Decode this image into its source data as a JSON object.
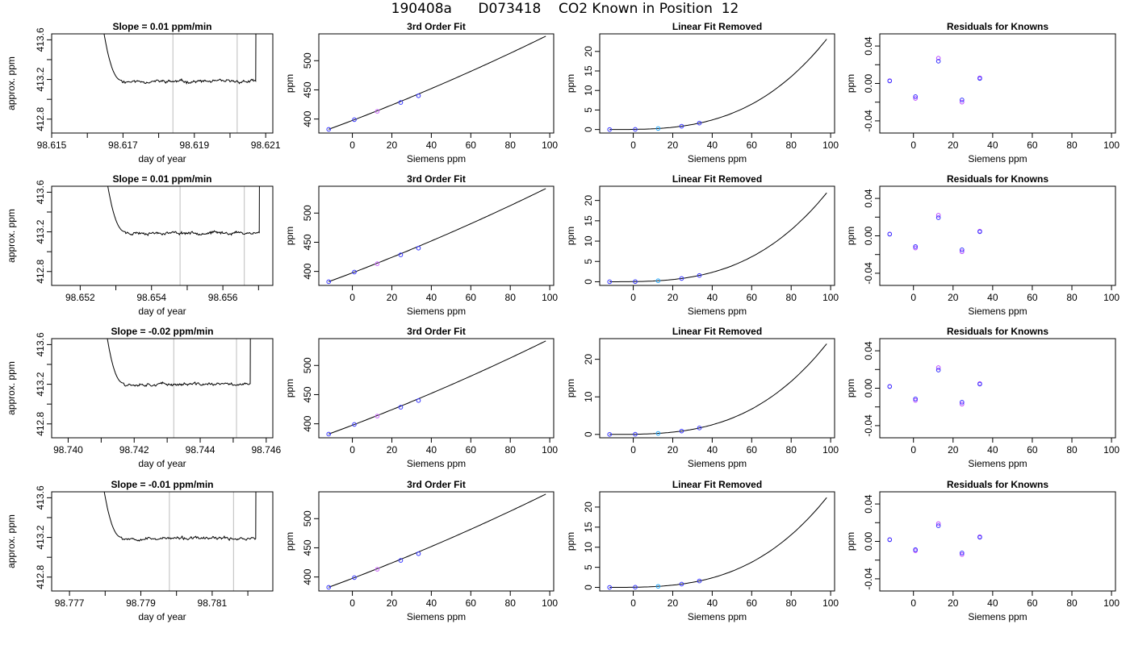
{
  "page_title": "190408a      D073418    CO2 Known in Position  12",
  "colors": {
    "line": "#000000",
    "window_marker": "#c8c8c8",
    "point_primary": "#3333ff",
    "point_secondary": "#bb44ff",
    "point_cyan": "#22aaff",
    "point_pink": "#cc66ff"
  },
  "chart_data": [
    {
      "type": "line",
      "row": 1,
      "title": "Slope =  0.01  ppm/min",
      "xlabel": "day of year",
      "ylabel": "approx. ppm",
      "xlim": [
        98.615,
        98.6212
      ],
      "ylim": [
        412.66,
        413.66
      ],
      "x_ticks": [
        98.615,
        98.616,
        98.617,
        98.618,
        98.619,
        98.62,
        98.621
      ],
      "x_tick_labels": [
        "98.615",
        "",
        "98.617",
        "",
        "98.619",
        "",
        "98.621"
      ],
      "y_ticks": [
        412.8,
        413.0,
        413.2,
        413.4,
        413.6
      ],
      "y_tick_labels": [
        "412.8",
        "",
        "413.2",
        "",
        "413.6"
      ],
      "window": [
        98.6184,
        98.6202
      ],
      "t_start": 98.6161,
      "t_end": 98.6209,
      "baseline": 413.18,
      "seed": 11
    },
    {
      "type": "line",
      "row": 1,
      "title": "3rd Order Fit",
      "xlabel": "Siemens ppm",
      "ylabel": "ppm",
      "xlim": [
        -17,
        102
      ],
      "ylim": [
        376,
        546
      ],
      "x_ticks": [
        0,
        20,
        40,
        60,
        80,
        100
      ],
      "x_tick_labels": [
        "0",
        "20",
        "40",
        "60",
        "80",
        "100"
      ],
      "y_ticks": [
        400,
        450,
        500
      ],
      "y_tick_labels": [
        "400",
        "450",
        "500"
      ],
      "points_x": [
        -12,
        1,
        12.6,
        24.5,
        33.5
      ],
      "points_y": [
        382.3,
        398.9,
        413.2,
        428.4,
        439.9
      ],
      "curve_x_range": [
        -12,
        98
      ],
      "curve_end_y": 542
    },
    {
      "type": "line",
      "row": 1,
      "title": "Linear Fit Removed",
      "xlabel": "Siemens ppm",
      "ylabel": "ppm",
      "xlim": [
        -17,
        102
      ],
      "ylim": [
        -0.9,
        24.5
      ],
      "x_ticks": [
        0,
        20,
        40,
        60,
        80,
        100
      ],
      "x_tick_labels": [
        "0",
        "20",
        "40",
        "60",
        "80",
        "100"
      ],
      "y_ticks": [
        0,
        5,
        10,
        15,
        20
      ],
      "y_tick_labels": [
        "0",
        "5",
        "10",
        "15",
        "20"
      ],
      "points_x": [
        -12,
        1,
        12.6,
        24.5,
        33.5
      ],
      "curve_x_range": [
        -12,
        98
      ],
      "curve_end_y": 23.6
    },
    {
      "type": "scatter",
      "row": 1,
      "title": "Residuals for Knowns",
      "xlabel": "Siemens ppm",
      "ylabel": "ppm",
      "xlim": [
        -17,
        102
      ],
      "ylim": [
        -0.053,
        0.053
      ],
      "x_ticks": [
        0,
        20,
        40,
        60,
        80,
        100
      ],
      "x_tick_labels": [
        "0",
        "20",
        "40",
        "60",
        "80",
        "100"
      ],
      "y_ticks": [
        -0.04,
        -0.02,
        0,
        0.02,
        0.04
      ],
      "y_tick_labels": [
        "-0.04",
        "",
        "0.00",
        "",
        "0.04"
      ],
      "points_x": [
        -12,
        1,
        12.6,
        24.5,
        33.5
      ],
      "points_y": [
        0.003,
        -0.016,
        0.027,
        -0.02,
        0.006
      ]
    },
    {
      "type": "line",
      "row": 2,
      "title": "Slope =  0.01  ppm/min",
      "xlabel": "day of year",
      "ylabel": "approx. ppm",
      "xlim": [
        98.6512,
        98.6574
      ],
      "ylim": [
        412.66,
        413.66
      ],
      "x_ticks": [
        98.652,
        98.653,
        98.654,
        98.655,
        98.656,
        98.657
      ],
      "x_tick_labels": [
        "98.652",
        "",
        "98.654",
        "",
        "98.656",
        ""
      ],
      "y_ticks": [
        412.8,
        413.0,
        413.2,
        413.4,
        413.6
      ],
      "y_tick_labels": [
        "412.8",
        "",
        "413.2",
        "",
        "413.6"
      ],
      "window": [
        98.6548,
        98.6566
      ],
      "t_start": 98.6524,
      "t_end": 98.6572,
      "baseline": 413.19,
      "seed": 23
    },
    {
      "type": "line",
      "row": 2,
      "title": "3rd Order Fit",
      "xlabel": "Siemens ppm",
      "ylabel": "ppm",
      "xlim": [
        -17,
        102
      ],
      "ylim": [
        376,
        546
      ],
      "x_ticks": [
        0,
        20,
        40,
        60,
        80,
        100
      ],
      "x_tick_labels": [
        "0",
        "20",
        "40",
        "60",
        "80",
        "100"
      ],
      "y_ticks": [
        400,
        450,
        500
      ],
      "y_tick_labels": [
        "400",
        "450",
        "500"
      ],
      "points_x": [
        -12,
        1,
        12.6,
        24.5,
        33.5
      ],
      "points_y": [
        382.3,
        398.9,
        413.2,
        428.4,
        439.9
      ],
      "curve_x_range": [
        -12,
        98
      ],
      "curve_end_y": 542
    },
    {
      "type": "line",
      "row": 2,
      "title": "Linear Fit Removed",
      "xlabel": "Siemens ppm",
      "ylabel": "ppm",
      "xlim": [
        -17,
        102
      ],
      "ylim": [
        -0.9,
        23.5
      ],
      "x_ticks": [
        0,
        20,
        40,
        60,
        80,
        100
      ],
      "x_tick_labels": [
        "0",
        "20",
        "40",
        "60",
        "80",
        "100"
      ],
      "y_ticks": [
        0,
        5,
        10,
        15,
        20
      ],
      "y_tick_labels": [
        "0",
        "5",
        "10",
        "15",
        "20"
      ],
      "points_x": [
        -12,
        1,
        12.6,
        24.5,
        33.5
      ],
      "curve_x_range": [
        -12,
        98
      ],
      "curve_end_y": 22.3
    },
    {
      "type": "scatter",
      "row": 2,
      "title": "Residuals for Knowns",
      "xlabel": "Siemens ppm",
      "ylabel": "ppm",
      "xlim": [
        -17,
        102
      ],
      "ylim": [
        -0.053,
        0.053
      ],
      "x_ticks": [
        0,
        20,
        40,
        60,
        80,
        100
      ],
      "x_tick_labels": [
        "0",
        "20",
        "40",
        "60",
        "80",
        "100"
      ],
      "y_ticks": [
        -0.04,
        -0.02,
        0,
        0.02,
        0.04
      ],
      "y_tick_labels": [
        "-0.04",
        "",
        "0.00",
        "",
        "0.04"
      ],
      "points_x": [
        -12,
        1,
        12.6,
        24.5,
        33.5
      ],
      "points_y": [
        0.002,
        -0.013,
        0.022,
        -0.017,
        0.005
      ]
    },
    {
      "type": "line",
      "row": 3,
      "title": "Slope =  -0.02  ppm/min",
      "xlabel": "day of year",
      "ylabel": "approx. ppm",
      "xlim": [
        98.7395,
        98.7462
      ],
      "ylim": [
        412.66,
        413.66
      ],
      "x_ticks": [
        98.74,
        98.741,
        98.742,
        98.743,
        98.744,
        98.745,
        98.746
      ],
      "x_tick_labels": [
        "98.740",
        "",
        "98.742",
        "",
        "98.744",
        "",
        "98.746"
      ],
      "y_ticks": [
        412.8,
        413.0,
        413.2,
        413.4,
        413.6
      ],
      "y_tick_labels": [
        "412.8",
        "",
        "413.2",
        "",
        "413.6"
      ],
      "window": [
        98.7432,
        98.7451
      ],
      "t_start": 98.7408,
      "t_end": 98.7457,
      "baseline": 413.2,
      "seed": 37
    },
    {
      "type": "line",
      "row": 3,
      "title": "3rd Order Fit",
      "xlabel": "Siemens ppm",
      "ylabel": "ppm",
      "xlim": [
        -17,
        102
      ],
      "ylim": [
        376,
        546
      ],
      "x_ticks": [
        0,
        20,
        40,
        60,
        80,
        100
      ],
      "x_tick_labels": [
        "0",
        "20",
        "40",
        "60",
        "80",
        "100"
      ],
      "y_ticks": [
        400,
        450,
        500
      ],
      "y_tick_labels": [
        "400",
        "450",
        "500"
      ],
      "points_x": [
        -12,
        1,
        12.6,
        24.5,
        33.5
      ],
      "points_y": [
        382.3,
        398.9,
        413.2,
        428.4,
        439.9
      ],
      "curve_x_range": [
        -12,
        98
      ],
      "curve_end_y": 542
    },
    {
      "type": "line",
      "row": 3,
      "title": "Linear Fit Removed",
      "xlabel": "Siemens ppm",
      "ylabel": "ppm",
      "xlim": [
        -17,
        102
      ],
      "ylim": [
        -0.9,
        25.5
      ],
      "x_ticks": [
        0,
        5,
        10,
        15,
        20
      ],
      "x_tick_labels": [
        "0",
        "20",
        "40",
        "60",
        "80",
        "100"
      ],
      "y_ticks": [
        0,
        10,
        20
      ],
      "y_tick_labels": [
        "0",
        "10",
        "20"
      ],
      "points_x": [
        -12,
        1,
        12.6,
        24.5,
        33.5
      ],
      "curve_x_range": [
        -12,
        98
      ],
      "curve_end_y": 24.6
    },
    {
      "type": "scatter",
      "row": 3,
      "title": "Residuals for Knowns",
      "xlabel": "Siemens ppm",
      "ylabel": "ppm",
      "xlim": [
        -17,
        102
      ],
      "ylim": [
        -0.053,
        0.053
      ],
      "x_ticks": [
        0,
        20,
        40,
        60,
        80,
        100
      ],
      "x_tick_labels": [
        "0",
        "20",
        "40",
        "60",
        "80",
        "100"
      ],
      "y_ticks": [
        -0.04,
        -0.02,
        0,
        0.02,
        0.04
      ],
      "y_tick_labels": [
        "-0.04",
        "",
        "0.00",
        "",
        "0.04"
      ],
      "points_x": [
        -12,
        1,
        12.6,
        24.5,
        33.5
      ],
      "points_y": [
        0.002,
        -0.013,
        0.022,
        -0.017,
        0.005
      ]
    },
    {
      "type": "line",
      "row": 4,
      "title": "Slope =  -0.01  ppm/min",
      "xlabel": "day of year",
      "ylabel": "approx. ppm",
      "xlim": [
        98.7765,
        98.7827
      ],
      "ylim": [
        412.66,
        413.66
      ],
      "x_ticks": [
        98.777,
        98.778,
        98.779,
        98.78,
        98.781,
        98.782
      ],
      "x_tick_labels": [
        "98.777",
        "",
        "98.779",
        "",
        "98.781",
        ""
      ],
      "y_ticks": [
        412.8,
        413.0,
        413.2,
        413.4,
        413.6
      ],
      "y_tick_labels": [
        "412.8",
        "",
        "413.2",
        "",
        "413.6"
      ],
      "window": [
        98.7798,
        98.7816
      ],
      "t_start": 98.7776,
      "t_end": 98.7824,
      "baseline": 413.19,
      "seed": 53
    },
    {
      "type": "line",
      "row": 4,
      "title": "3rd Order Fit",
      "xlabel": "Siemens ppm",
      "ylabel": "ppm",
      "xlim": [
        -17,
        102
      ],
      "ylim": [
        376,
        546
      ],
      "x_ticks": [
        0,
        20,
        40,
        60,
        80,
        100
      ],
      "x_tick_labels": [
        "0",
        "20",
        "40",
        "60",
        "80",
        "100"
      ],
      "y_ticks": [
        400,
        450,
        500
      ],
      "y_tick_labels": [
        "400",
        "450",
        "500"
      ],
      "points_x": [
        -12,
        1,
        12.6,
        24.5,
        33.5
      ],
      "points_y": [
        382.3,
        398.9,
        413.2,
        428.4,
        439.9
      ],
      "curve_x_range": [
        -12,
        98
      ],
      "curve_end_y": 542
    },
    {
      "type": "line",
      "row": 4,
      "title": "Linear Fit Removed",
      "xlabel": "Siemens ppm",
      "ylabel": "ppm",
      "xlim": [
        -17,
        102
      ],
      "ylim": [
        -0.9,
        23.8
      ],
      "x_ticks": [
        0,
        20,
        40,
        60,
        80,
        100
      ],
      "x_tick_labels": [
        "0",
        "20",
        "40",
        "60",
        "80",
        "100"
      ],
      "y_ticks": [
        0,
        5,
        10,
        15,
        20
      ],
      "y_tick_labels": [
        "0",
        "5",
        "10",
        "15",
        "20"
      ],
      "points_x": [
        -12,
        1,
        12.6,
        24.5,
        33.5
      ],
      "curve_x_range": [
        -12,
        98
      ],
      "curve_end_y": 22.8
    },
    {
      "type": "scatter",
      "row": 4,
      "title": "Residuals for Knowns",
      "xlabel": "Siemens ppm",
      "ylabel": "ppm",
      "xlim": [
        -17,
        102
      ],
      "ylim": [
        -0.053,
        0.053
      ],
      "x_ticks": [
        0,
        20,
        40,
        60,
        80,
        100
      ],
      "x_tick_labels": [
        "0",
        "20",
        "40",
        "60",
        "80",
        "100"
      ],
      "y_ticks": [
        -0.04,
        -0.02,
        0,
        0.02,
        0.04
      ],
      "y_tick_labels": [
        "-0.04",
        "",
        "0.00",
        "",
        "0.04"
      ],
      "points_x": [
        -12,
        1,
        12.6,
        24.5,
        33.5
      ],
      "points_y": [
        0.002,
        -0.01,
        0.019,
        -0.014,
        0.005
      ]
    }
  ]
}
